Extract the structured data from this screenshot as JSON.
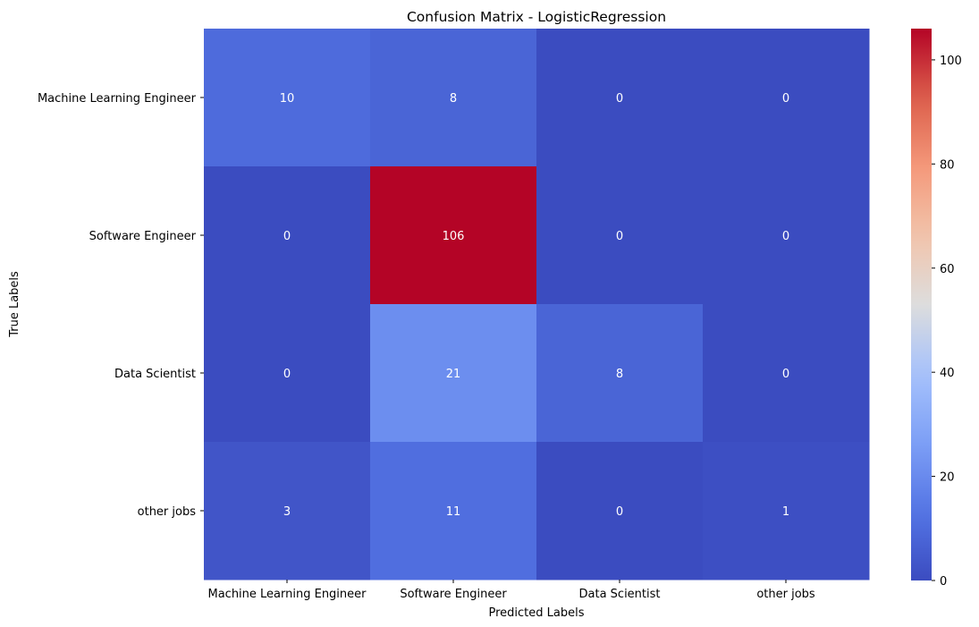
{
  "chart_data": {
    "type": "heatmap",
    "title": "Confusion Matrix - LogisticRegression",
    "xlabel": "Predicted Labels",
    "ylabel": "True Labels",
    "x_categories": [
      "Machine Learning Engineer",
      "Software Engineer",
      "Data Scientist",
      "other jobs"
    ],
    "y_categories": [
      "Machine Learning Engineer",
      "Software Engineer",
      "Data Scientist",
      "other jobs"
    ],
    "values": [
      [
        10,
        8,
        0,
        0
      ],
      [
        0,
        106,
        0,
        0
      ],
      [
        0,
        21,
        8,
        0
      ],
      [
        3,
        11,
        0,
        1
      ]
    ],
    "colormap": "coolwarm",
    "colorbar": {
      "range": [
        0,
        106
      ],
      "ticks": [
        0,
        20,
        40,
        60,
        80,
        100
      ]
    },
    "annotations": true,
    "grid": false
  }
}
